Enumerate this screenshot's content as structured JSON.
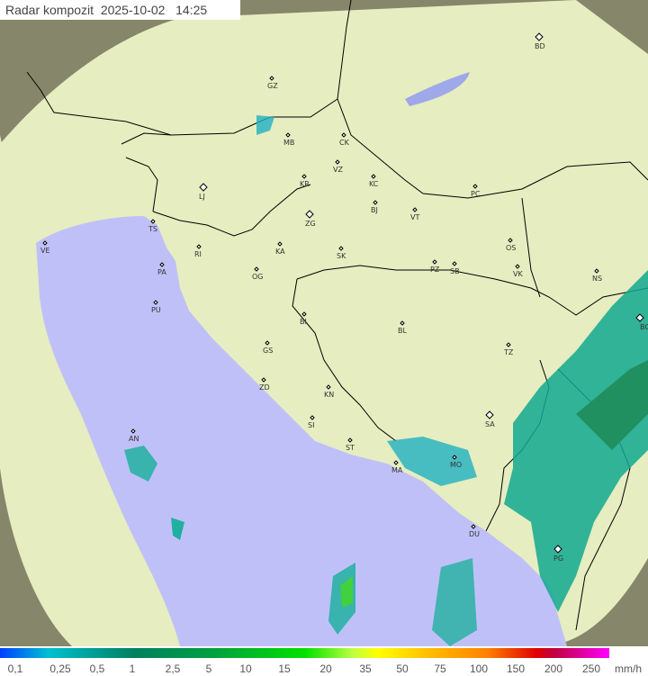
{
  "title": {
    "label": "Radar kompozit",
    "date": "2025-10-02",
    "time": "14:25"
  },
  "legend": {
    "unit": "mm/h",
    "ticks": [
      "0,1",
      "0,25",
      "0,5",
      "1",
      "2,5",
      "5",
      "10",
      "15",
      "20",
      "35",
      "50",
      "75",
      "100",
      "150",
      "200",
      "250"
    ]
  },
  "cities": [
    {
      "code": "GZ",
      "major": false
    },
    {
      "code": "BD",
      "major": true
    },
    {
      "code": "MB",
      "major": false
    },
    {
      "code": "CK",
      "major": false
    },
    {
      "code": "VZ",
      "major": false
    },
    {
      "code": "KR",
      "major": false
    },
    {
      "code": "KC",
      "major": false
    },
    {
      "code": "LJ",
      "major": true
    },
    {
      "code": "PC",
      "major": false
    },
    {
      "code": "ZG",
      "major": true
    },
    {
      "code": "BJ",
      "major": false
    },
    {
      "code": "VT",
      "major": false
    },
    {
      "code": "TS",
      "major": false
    },
    {
      "code": "VE",
      "major": false
    },
    {
      "code": "RI",
      "major": false
    },
    {
      "code": "KA",
      "major": false
    },
    {
      "code": "SK",
      "major": false
    },
    {
      "code": "OS",
      "major": false
    },
    {
      "code": "PA",
      "major": false
    },
    {
      "code": "OG",
      "major": false
    },
    {
      "code": "PZ",
      "major": false
    },
    {
      "code": "SB",
      "major": false
    },
    {
      "code": "VK",
      "major": false
    },
    {
      "code": "NS",
      "major": false
    },
    {
      "code": "PU",
      "major": false
    },
    {
      "code": "BI",
      "major": false
    },
    {
      "code": "BL",
      "major": false
    },
    {
      "code": "BG",
      "major": true
    },
    {
      "code": "GS",
      "major": false
    },
    {
      "code": "TZ",
      "major": false
    },
    {
      "code": "ZD",
      "major": false
    },
    {
      "code": "KN",
      "major": false
    },
    {
      "code": "SA",
      "major": true
    },
    {
      "code": "AN",
      "major": false
    },
    {
      "code": "SI",
      "major": false
    },
    {
      "code": "ST",
      "major": false
    },
    {
      "code": "MA",
      "major": false
    },
    {
      "code": "MO",
      "major": false
    },
    {
      "code": "DU",
      "major": false
    },
    {
      "code": "PG",
      "major": true
    }
  ],
  "colors": {
    "sea": "#c0c0f8",
    "land": "#e8eec0",
    "outside": "#8a8a6a",
    "border": "#000000"
  }
}
